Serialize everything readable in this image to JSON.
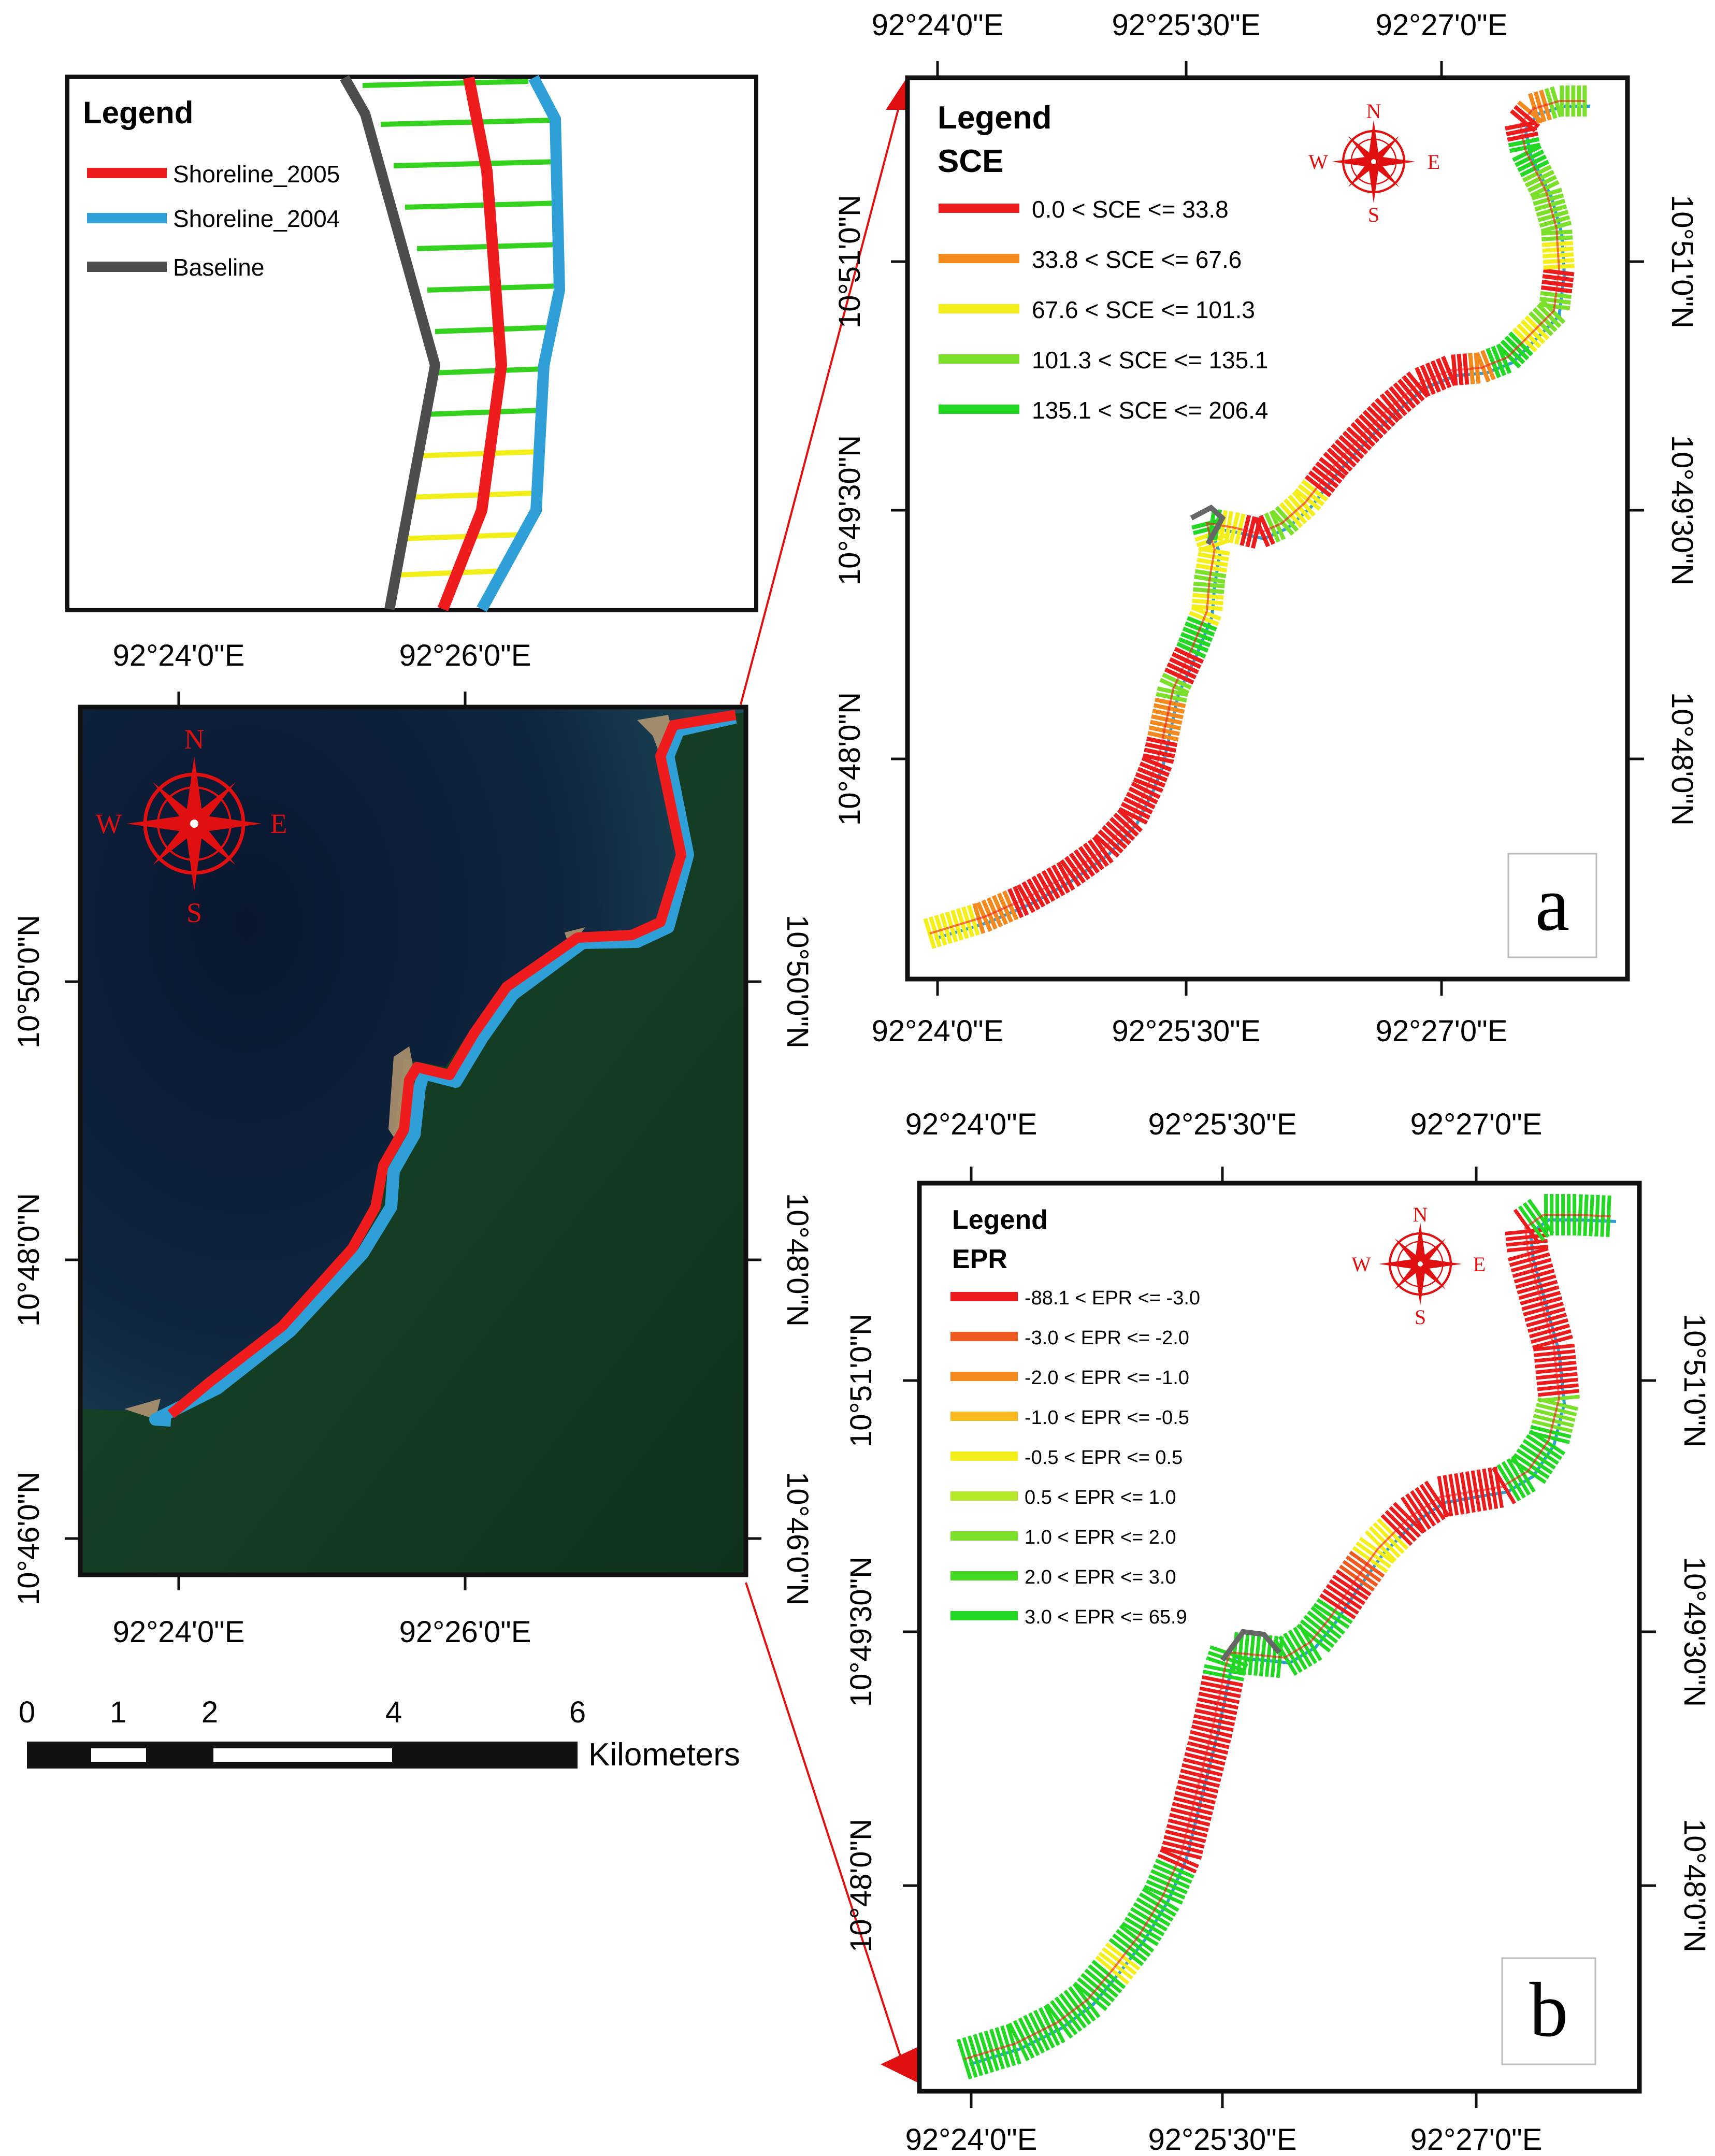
{
  "inset": {
    "legend_title": "Legend",
    "entries": [
      {
        "label": "Shoreline_2005",
        "color": "#ee1c1c"
      },
      {
        "label": "Shoreline_2004",
        "color": "#2f9fd8"
      },
      {
        "label": "Baseline",
        "color": "#4d4d4d"
      }
    ],
    "transect_color_green": "#34d11f",
    "transect_color_yellow": "#f2ee1a"
  },
  "main_map": {
    "x_ticks": [
      "92°24'0\"E",
      "92°26'0\"E"
    ],
    "y_ticks": [
      "10°50'0\"N",
      "10°48'0\"N",
      "10°46'0\"N"
    ],
    "compass": {
      "n": "N",
      "s": "S",
      "e": "E",
      "w": "W"
    },
    "scale_labels": [
      "0",
      "1",
      "2",
      "4",
      "6"
    ],
    "scale_unit": "Kilometers"
  },
  "panel_a": {
    "letter": "a",
    "legend_title": "Legend",
    "legend_subtitle": "SCE",
    "classes": [
      {
        "label": "0.0 < SCE <= 33.8",
        "color": "#ec1c1c"
      },
      {
        "label": "33.8 < SCE <= 67.6",
        "color": "#f48a1e"
      },
      {
        "label": "67.6 < SCE <= 101.3",
        "color": "#f4ef1a"
      },
      {
        "label": "101.3 < SCE <= 135.1",
        "color": "#7ae02a"
      },
      {
        "label": "135.1 < SCE <= 206.4",
        "color": "#22d822"
      }
    ],
    "x_ticks": [
      "92°24'0\"E",
      "92°25'30\"E",
      "92°27'0\"E"
    ],
    "y_ticks": [
      "10°51'0\"N",
      "10°49'30\"N",
      "10°48'0\"N"
    ],
    "compass": {
      "n": "N",
      "s": "S",
      "e": "E",
      "w": "W"
    }
  },
  "panel_b": {
    "letter": "b",
    "legend_title": "Legend",
    "legend_subtitle": "EPR",
    "classes": [
      {
        "label": "-88.1 < EPR <= -3.0",
        "color": "#ec1c1c"
      },
      {
        "label": "-3.0 < EPR <= -2.0",
        "color": "#f05a1e"
      },
      {
        "label": "-2.0 < EPR <= -1.0",
        "color": "#f48a1e"
      },
      {
        "label": "-1.0 < EPR <= -0.5",
        "color": "#f8b81c"
      },
      {
        "label": "-0.5 < EPR <= 0.5",
        "color": "#f4ef1a"
      },
      {
        "label": "0.5 < EPR <= 1.0",
        "color": "#b6e828"
      },
      {
        "label": "1.0 < EPR <= 2.0",
        "color": "#7ae02a"
      },
      {
        "label": "2.0 < EPR <= 3.0",
        "color": "#44da24"
      },
      {
        "label": "3.0 < EPR <= 65.9",
        "color": "#22d822"
      }
    ],
    "x_ticks": [
      "92°24'0\"E",
      "92°25'30\"E",
      "92°27'0\"E"
    ],
    "y_ticks": [
      "10°51'0\"N",
      "10°49'30\"N",
      "10°48'0\"N"
    ],
    "compass": {
      "n": "N",
      "s": "S",
      "e": "E",
      "w": "W"
    }
  },
  "colors": {
    "sea_dark": "#0d1a33",
    "sea_shallow": "#2b5b63",
    "land": "#143c24",
    "frame": "#111111",
    "connector": "#e01010"
  }
}
